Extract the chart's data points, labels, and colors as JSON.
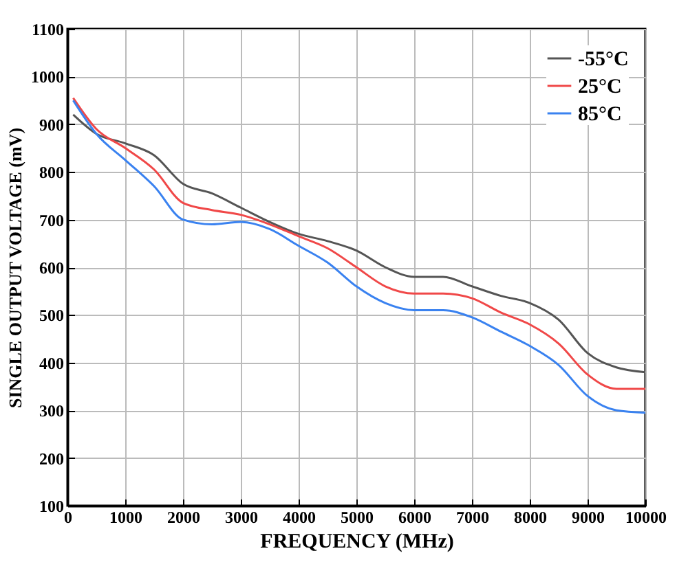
{
  "chart_data": {
    "type": "line",
    "xlabel": "FREQUENCY (MHz)",
    "ylabel": "SINGLE OUTPUT VOLTAGE (mV)",
    "x": [
      100,
      500,
      1000,
      1500,
      2000,
      2500,
      3000,
      3500,
      4000,
      4500,
      5000,
      5500,
      6000,
      6500,
      7000,
      7500,
      8000,
      8500,
      9000,
      9500,
      10000
    ],
    "series": [
      {
        "name": "-55°C",
        "color": "#555555",
        "values": [
          920,
          880,
          860,
          835,
          775,
          755,
          725,
          695,
          670,
          655,
          635,
          600,
          580,
          580,
          560,
          540,
          525,
          490,
          420,
          390,
          380
        ]
      },
      {
        "name": "25°C",
        "color": "#f04848",
        "values": [
          955,
          890,
          850,
          805,
          735,
          720,
          710,
          690,
          665,
          640,
          600,
          560,
          545,
          545,
          535,
          505,
          480,
          440,
          375,
          345,
          345
        ]
      },
      {
        "name": "85°C",
        "color": "#3a82f0",
        "values": [
          950,
          880,
          825,
          770,
          700,
          690,
          695,
          680,
          645,
          610,
          560,
          525,
          510,
          510,
          495,
          465,
          435,
          395,
          330,
          300,
          295
        ]
      }
    ],
    "xlim": [
      0,
      10000
    ],
    "xticks": [
      0,
      1000,
      2000,
      3000,
      4000,
      5000,
      6000,
      7000,
      8000,
      9000,
      10000
    ],
    "ylim": [
      100,
      1100
    ],
    "yticks": [
      100,
      200,
      300,
      400,
      500,
      600,
      700,
      800,
      900,
      1000,
      1100
    ],
    "grid": true,
    "legend": "top right",
    "marker": "none",
    "line_style": "solid"
  }
}
